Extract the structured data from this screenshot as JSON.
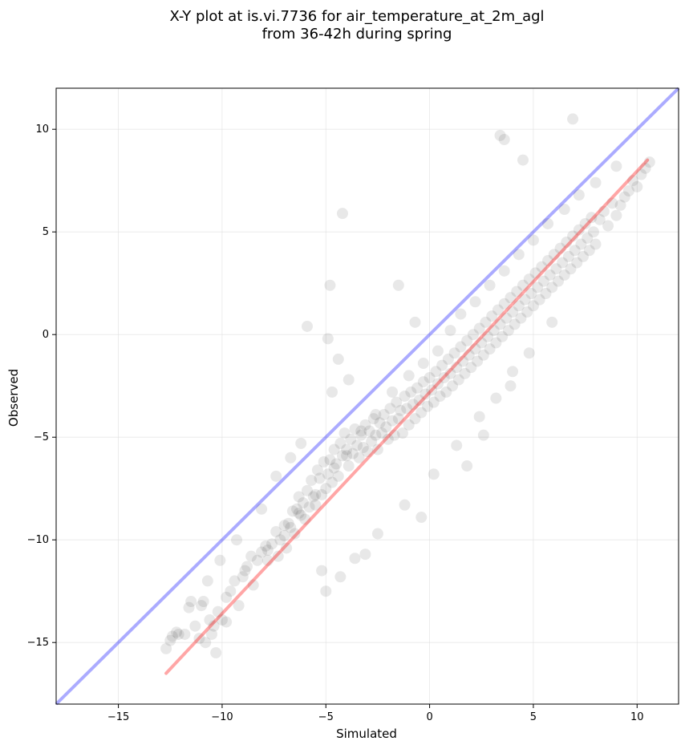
{
  "chart_data": {
    "type": "scatter",
    "title_lines": [
      "X-Y plot at is.vi.7736 for air_temperature_at_2m_agl",
      "from 36-42h during spring"
    ],
    "xlabel": "Simulated",
    "ylabel": "Observed",
    "xlim": [
      -18,
      12
    ],
    "ylim": [
      -18,
      12
    ],
    "x_ticks": [
      -15,
      -10,
      -5,
      0,
      5,
      10
    ],
    "y_ticks": [
      -15,
      -10,
      -5,
      0,
      5,
      10
    ],
    "x_tick_labels": [
      "−15",
      "−10",
      "−5",
      "0",
      "5",
      "10"
    ],
    "y_tick_labels": [
      "−15",
      "−10",
      "−5",
      "0",
      "5",
      "10"
    ],
    "grid": true,
    "point_color": "#000000",
    "identity_line": {
      "color": "#0000ff",
      "x": [
        -18,
        12
      ],
      "y": [
        -18,
        12
      ]
    },
    "fit_line": {
      "color": "#ff0000",
      "x": [
        -12.7,
        10.5
      ],
      "y": [
        -16.5,
        8.5
      ]
    },
    "points": {
      "x": [
        -12.7,
        -12.5,
        -12.2,
        -11.8,
        -11.5,
        -11.3,
        -11.1,
        -10.9,
        -10.8,
        -10.6,
        -10.5,
        -10.4,
        -10.3,
        -10.2,
        -10.0,
        -9.8,
        -9.6,
        -9.4,
        -9.2,
        -9.0,
        -8.8,
        -8.6,
        -8.5,
        -8.3,
        -8.1,
        -7.9,
        -7.8,
        -7.6,
        -7.4,
        -7.3,
        -7.2,
        -7.0,
        -6.9,
        -6.8,
        -6.7,
        -6.6,
        -6.5,
        -6.4,
        -6.3,
        -6.2,
        -6.1,
        -6.0,
        -5.9,
        -5.8,
        -5.7,
        -5.6,
        -5.5,
        -5.4,
        -5.3,
        -5.2,
        -5.1,
        -5.0,
        -4.9,
        -4.8,
        -4.7,
        -4.6,
        -4.5,
        -4.4,
        -4.3,
        -4.2,
        -4.1,
        -4.0,
        -3.9,
        -3.8,
        -3.7,
        -3.6,
        -3.5,
        -3.4,
        -3.3,
        -3.2,
        -3.1,
        -3.0,
        -2.9,
        -2.8,
        -2.7,
        -2.6,
        -2.5,
        -2.4,
        -2.3,
        -2.2,
        -2.1,
        -2.0,
        -1.9,
        -1.8,
        -1.7,
        -1.6,
        -1.5,
        -1.4,
        -1.3,
        -1.2,
        -1.1,
        -1.0,
        -0.9,
        -0.8,
        -0.7,
        -0.6,
        -0.5,
        -0.4,
        -0.3,
        -0.2,
        -0.1,
        0.0,
        0.1,
        0.2,
        0.3,
        0.4,
        0.5,
        0.6,
        0.7,
        0.8,
        0.9,
        1.0,
        1.1,
        1.2,
        1.3,
        1.4,
        1.5,
        1.6,
        1.7,
        1.8,
        1.9,
        2.0,
        2.1,
        2.2,
        2.3,
        2.4,
        2.5,
        2.6,
        2.7,
        2.8,
        2.9,
        3.0,
        3.1,
        3.2,
        3.3,
        3.4,
        3.5,
        3.6,
        3.7,
        3.8,
        3.9,
        4.0,
        4.1,
        4.2,
        4.3,
        4.4,
        4.5,
        4.6,
        4.7,
        4.8,
        4.9,
        5.0,
        5.1,
        5.2,
        5.3,
        5.4,
        5.5,
        5.6,
        5.7,
        5.8,
        5.9,
        6.0,
        6.1,
        6.2,
        6.3,
        6.4,
        6.5,
        6.6,
        6.7,
        6.8,
        6.9,
        7.0,
        7.1,
        7.2,
        7.3,
        7.4,
        7.5,
        7.6,
        7.7,
        7.8,
        7.9,
        8.0,
        8.2,
        8.4,
        8.6,
        8.8,
        9.0,
        9.2,
        9.4,
        9.6,
        9.8,
        10.0,
        10.2,
        10.4,
        10.6,
        -11.0,
        -9.8,
        -8.9,
        -7.8,
        -7.0,
        -6.3,
        -5.5,
        -4.6,
        -4.0,
        -3.3,
        -2.6,
        -1.8,
        -1.0,
        -0.3,
        0.4,
        1.0,
        1.5,
        2.2,
        2.9,
        3.6,
        4.3,
        5.0,
        5.7,
        6.5,
        7.2,
        8.0,
        9.0,
        -4.2,
        -5.9,
        -4.9,
        -4.4,
        -4.8,
        -6.2,
        -1.5,
        -0.7,
        3.6,
        3.4,
        6.9,
        4.5,
        -5.2,
        -3.1,
        -0.4,
        1.8,
        2.6,
        3.9,
        4.8,
        5.9,
        -5.0,
        -4.3,
        -3.6,
        -2.5,
        -1.2,
        0.2,
        1.3,
        2.4,
        3.2,
        4.0,
        -4.7,
        -3.9,
        -6.7,
        -7.4,
        -8.1,
        -9.3,
        -10.1,
        -10.7,
        -11.6,
        -12.1,
        -12.4
      ],
      "y": [
        -15.3,
        -14.9,
        -14.5,
        -14.6,
        -13.0,
        -14.2,
        -14.8,
        -13.0,
        -15.0,
        -13.9,
        -14.6,
        -14.2,
        -15.5,
        -13.5,
        -13.9,
        -14.0,
        -12.5,
        -12.0,
        -13.2,
        -11.8,
        -11.3,
        -10.8,
        -12.2,
        -11.0,
        -10.6,
        -10.3,
        -11.0,
        -10.2,
        -9.6,
        -10.8,
        -10.0,
        -9.8,
        -10.4,
        -9.2,
        -9.4,
        -8.6,
        -9.7,
        -8.5,
        -7.9,
        -8.8,
        -8.2,
        -9.0,
        -7.6,
        -8.4,
        -7.1,
        -7.9,
        -8.3,
        -6.6,
        -7.0,
        -7.8,
        -6.2,
        -7.5,
        -6.8,
        -6.1,
        -7.2,
        -5.6,
        -6.3,
        -6.9,
        -5.3,
        -5.9,
        -4.8,
        -5.6,
        -6.4,
        -5.1,
        -5.8,
        -4.6,
        -5.4,
        -6.0,
        -4.9,
        -5.5,
        -4.4,
        -5.7,
        -4.7,
        -5.2,
        -4.1,
        -4.9,
        -5.6,
        -4.3,
        -4.8,
        -3.9,
        -4.5,
        -5.1,
        -3.6,
        -4.2,
        -4.9,
        -3.3,
        -4.1,
        -3.7,
        -4.8,
        -3.0,
        -3.6,
        -4.4,
        -2.8,
        -3.4,
        -4.1,
        -2.6,
        -3.2,
        -3.8,
        -2.3,
        -2.9,
        -3.5,
        -2.1,
        -2.7,
        -3.3,
        -1.8,
        -2.4,
        -3.0,
        -1.5,
        -2.1,
        -2.8,
        -1.2,
        -1.9,
        -2.5,
        -0.9,
        -1.6,
        -2.2,
        -0.6,
        -1.3,
        -1.9,
        -0.3,
        -1.0,
        -1.6,
        0.0,
        -0.7,
        -1.3,
        0.3,
        -0.4,
        -1.0,
        0.6,
        -0.1,
        -0.7,
        0.9,
        0.2,
        -0.4,
        1.2,
        0.5,
        -0.1,
        1.5,
        0.8,
        0.2,
        1.8,
        1.1,
        0.5,
        2.1,
        1.4,
        0.8,
        2.4,
        1.7,
        1.1,
        2.7,
        2.0,
        1.4,
        3.0,
        2.3,
        1.7,
        3.3,
        2.6,
        2.0,
        3.6,
        2.9,
        2.3,
        3.9,
        3.2,
        2.6,
        4.2,
        3.5,
        2.9,
        4.5,
        3.8,
        3.2,
        4.8,
        4.1,
        3.5,
        5.1,
        4.4,
        3.8,
        5.4,
        4.7,
        4.1,
        5.7,
        5.0,
        4.4,
        5.6,
        6.0,
        5.3,
        6.4,
        5.8,
        6.3,
        6.7,
        7.0,
        7.5,
        7.2,
        7.8,
        8.1,
        8.4,
        -13.2,
        -12.8,
        -11.5,
        -10.5,
        -9.3,
        -8.7,
        -7.8,
        -6.5,
        -5.9,
        -4.7,
        -3.9,
        -2.8,
        -2.0,
        -1.4,
        -0.8,
        0.2,
        1.0,
        1.6,
        2.4,
        3.1,
        3.9,
        4.6,
        5.4,
        6.1,
        6.8,
        7.4,
        8.2,
        5.9,
        0.4,
        -0.2,
        -1.2,
        2.4,
        -5.3,
        2.4,
        0.6,
        9.5,
        9.7,
        10.5,
        8.5,
        -11.5,
        -10.7,
        -8.9,
        -6.4,
        -4.9,
        -2.5,
        -0.9,
        0.6,
        -12.5,
        -11.8,
        -10.9,
        -9.7,
        -8.3,
        -6.8,
        -5.4,
        -4.0,
        -3.1,
        -1.8,
        -2.8,
        -2.2,
        -6.0,
        -6.9,
        -8.5,
        -10.0,
        -11.0,
        -12.0,
        -13.3,
        -14.6,
        -14.7
      ]
    }
  }
}
